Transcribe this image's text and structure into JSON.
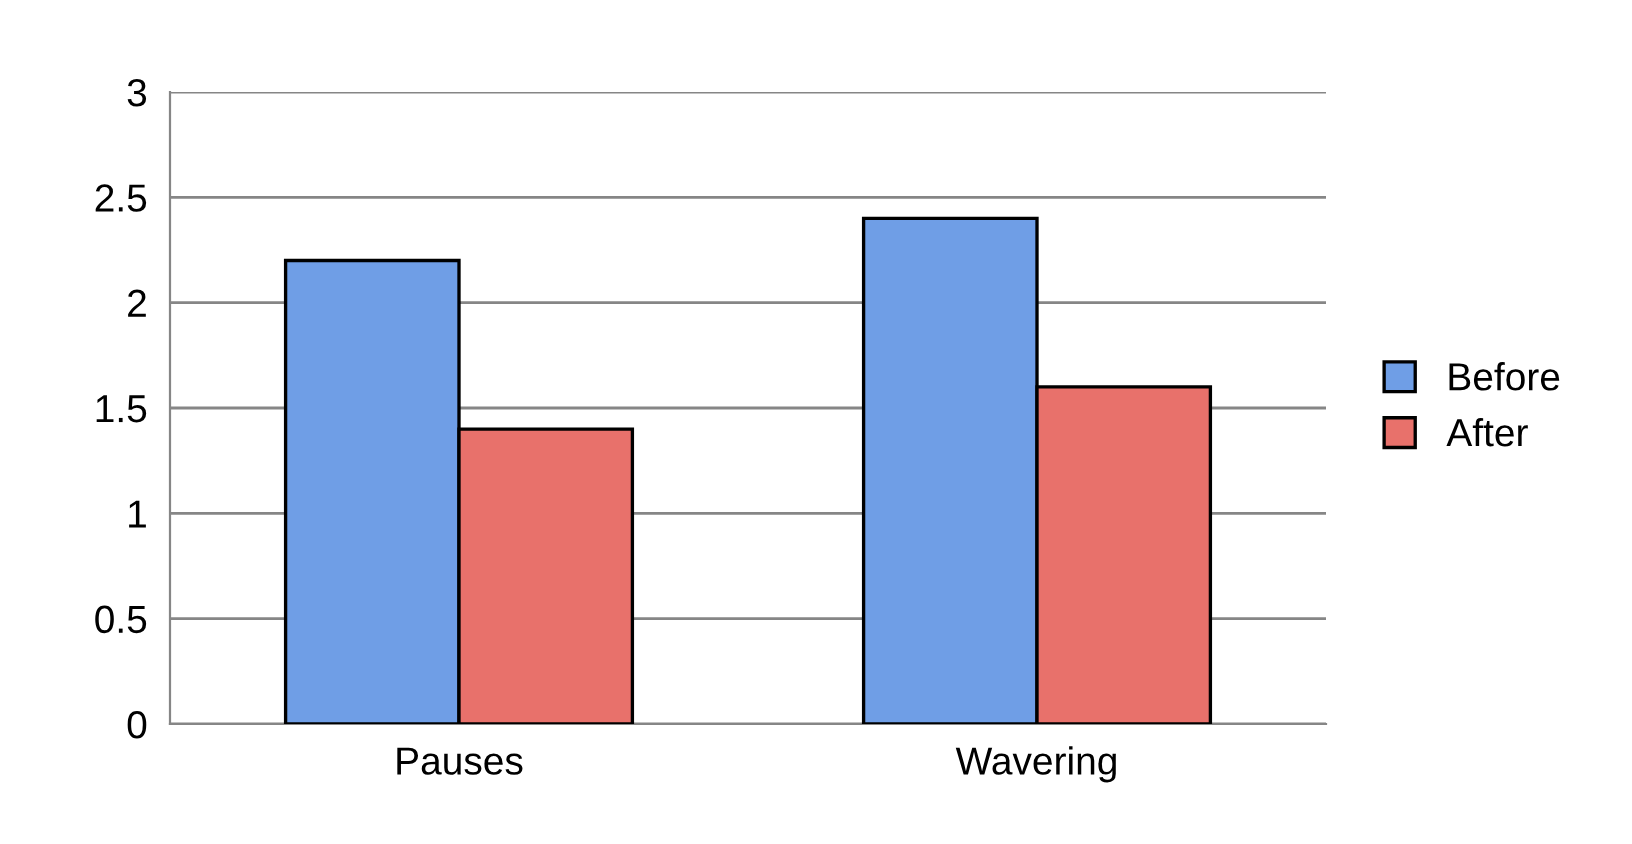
{
  "chart_data": {
    "type": "bar",
    "categories": [
      "Pauses",
      "Wavering"
    ],
    "series": [
      {
        "name": "Before",
        "color": "#6f9ee6",
        "values": [
          2.2,
          2.4
        ]
      },
      {
        "name": "After",
        "color": "#e8716b",
        "values": [
          1.4,
          1.6
        ]
      }
    ],
    "ylim": [
      0,
      3
    ],
    "yticks": [
      0,
      0.5,
      1,
      1.5,
      2,
      2.5,
      3
    ],
    "grid": "y",
    "legend": "right"
  }
}
